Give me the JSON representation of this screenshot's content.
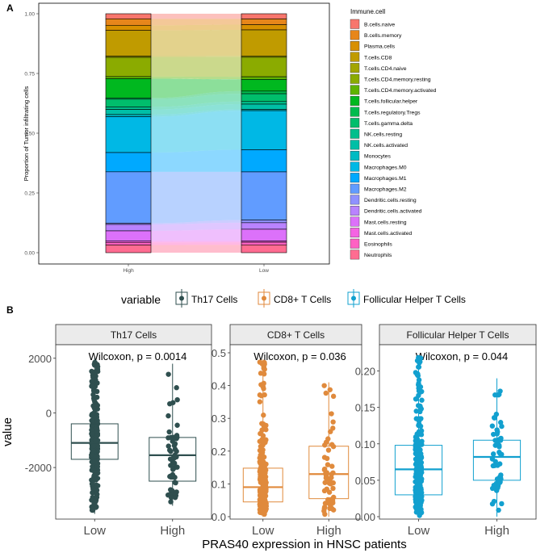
{
  "panels": {
    "a_label": "A",
    "b_label": "B"
  },
  "chart_data": [
    {
      "type": "stacked-bar-alluvial",
      "ylabel": "Proportion of Tumor infiltrating cells",
      "categories": [
        "High",
        "Low"
      ],
      "ylim": [
        0,
        1
      ],
      "yticks": [
        "0.00",
        "0.25",
        "0.50",
        "0.75",
        "1.00"
      ],
      "legend_title": "Immune.cell",
      "series": [
        {
          "name": "B.cells.naive",
          "color": "#F8766D",
          "values": [
            0.02,
            0.02
          ]
        },
        {
          "name": "B.cells.memory",
          "color": "#E7861B",
          "values": [
            0.025,
            0.022
          ]
        },
        {
          "name": "Plasma.cells",
          "color": "#D89000",
          "values": [
            0.02,
            0.02
          ]
        },
        {
          "name": "T.cells.CD8",
          "color": "#C09B00",
          "values": [
            0.1,
            0.1
          ]
        },
        {
          "name": "T.cells.CD4.naive",
          "color": "#A3A500",
          "values": [
            0.005,
            0.005
          ]
        },
        {
          "name": "T.cells.CD4.memory.resting",
          "color": "#8BAB00",
          "values": [
            0.075,
            0.075
          ]
        },
        {
          "name": "T.cells.CD4.memory.activated",
          "color": "#5EB300",
          "values": [
            0.008,
            0.01
          ]
        },
        {
          "name": "T.cells.follicular.helper",
          "color": "#00B81F",
          "values": [
            0.075,
            0.045
          ]
        },
        {
          "name": "T.cells.regulatory.Tregs",
          "color": "#00BB4E",
          "values": [
            0.005,
            0.01
          ]
        },
        {
          "name": "T.cells.gamma.delta",
          "color": "#00BE6C",
          "values": [
            0.03,
            0.03
          ]
        },
        {
          "name": "NK.cells.resting",
          "color": "#00BF8C",
          "values": [
            0.01,
            0.01
          ]
        },
        {
          "name": "NK.cells.activated",
          "color": "#00BFA6",
          "values": [
            0.02,
            0.02
          ]
        },
        {
          "name": "Monocytes",
          "color": "#00BBC3",
          "values": [
            0.008,
            0.005
          ]
        },
        {
          "name": "Macrophages.M0",
          "color": "#00B8E5",
          "values": [
            0.14,
            0.15
          ]
        },
        {
          "name": "Macrophages.M1",
          "color": "#00A9FF",
          "values": [
            0.075,
            0.085
          ]
        },
        {
          "name": "Macrophages.M2",
          "color": "#619CFF",
          "values": [
            0.2,
            0.185
          ]
        },
        {
          "name": "Dendritic.cells.resting",
          "color": "#8F91FF",
          "values": [
            0.005,
            0.01
          ]
        },
        {
          "name": "Dendritic.cells.activated",
          "color": "#B983FF",
          "values": [
            0.025,
            0.025
          ]
        },
        {
          "name": "Mast.cells.resting",
          "color": "#DC71FA",
          "values": [
            0.04,
            0.045
          ]
        },
        {
          "name": "Mast.cells.activated",
          "color": "#F564E3",
          "values": [
            0.005,
            0.005
          ]
        },
        {
          "name": "Eosinophils",
          "color": "#FF61C3",
          "values": [
            0.01,
            0.01
          ]
        },
        {
          "name": "Neutrophils",
          "color": "#FF6C91",
          "values": [
            0.03,
            0.03
          ]
        }
      ]
    },
    {
      "type": "box-strip",
      "legend_title": "variable",
      "xlabel": "PRAS40 expression in HNSC patients",
      "ylabel": "value",
      "groups": [
        "Low",
        "High"
      ],
      "facets": [
        {
          "name": "Th17 Cells",
          "legend_label": "Th17 Cells",
          "color": "#2F4F4F",
          "annotation": "Wilcoxon, p = 0.0014",
          "ylim": [
            -3800,
            2200
          ],
          "yticks": [
            -2000,
            0,
            2000
          ],
          "yticklabels": [
            "-2000",
            "0",
            "2000"
          ],
          "box": {
            "Low": {
              "min": -3700,
              "q1": -1700,
              "median": -1100,
              "q3": -400,
              "max": 2000
            },
            "High": {
              "min": -3400,
              "q1": -2500,
              "median": -1550,
              "q3": -900,
              "max": 1800
            }
          }
        },
        {
          "name": "CD8+ T Cells",
          "legend_label": "CD8+ T Cells",
          "color": "#E08A3C",
          "annotation": "Wilcoxon, p = 0.036",
          "ylim": [
            0,
            0.5
          ],
          "yticks": [
            0,
            0.1,
            0.2,
            0.3,
            0.4,
            0.5
          ],
          "yticklabels": [
            "0.0",
            "0.1",
            "0.2",
            "0.3",
            "0.4",
            "0.5"
          ],
          "box": {
            "Low": {
              "min": 0,
              "q1": 0.045,
              "median": 0.09,
              "q3": 0.148,
              "max": 0.48
            },
            "High": {
              "min": 0.0,
              "q1": 0.055,
              "median": 0.13,
              "q3": 0.215,
              "max": 0.41
            }
          }
        },
        {
          "name": "Follicular Helper T Cells",
          "legend_label": "Follicular Helper T Cells",
          "color": "#12A0CF",
          "annotation": "Wilcoxon, p = 0.044",
          "ylim": [
            0,
            0.225
          ],
          "yticks": [
            0,
            0.05,
            0.1,
            0.15,
            0.2
          ],
          "yticklabels": [
            "0.00",
            "0.05",
            "0.10",
            "0.15",
            "0.20"
          ],
          "box": {
            "Low": {
              "min": 0,
              "q1": 0.03,
              "median": 0.065,
              "q3": 0.098,
              "max": 0.22
            },
            "High": {
              "min": 0,
              "q1": 0.05,
              "median": 0.082,
              "q3": 0.105,
              "max": 0.19
            }
          }
        }
      ]
    }
  ]
}
